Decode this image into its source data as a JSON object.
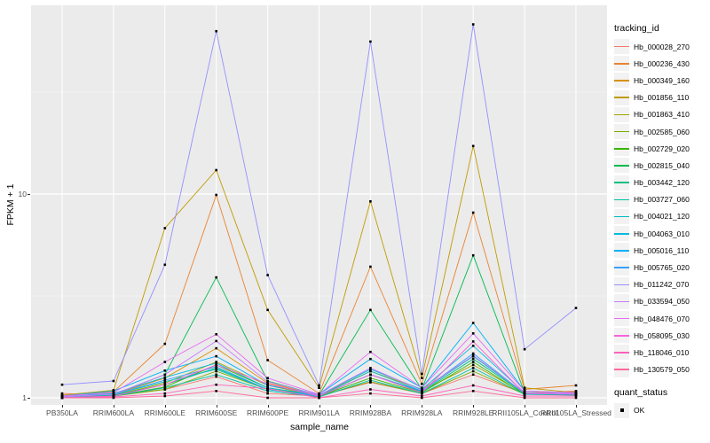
{
  "chart_data": {
    "type": "line",
    "title": "",
    "xlabel": "sample_name",
    "ylabel": "FPKM + 1",
    "y_scale": "log10",
    "ylim": [
      1,
      84
    ],
    "y_ticks": [
      1,
      10
    ],
    "y_minor": [
      3.162,
      31.62
    ],
    "grid": "on",
    "legend_position": "right",
    "legend_title": "tracking_id",
    "legend2_title": "quant_status",
    "legend2_items": [
      {
        "label": "OK"
      }
    ],
    "point_color": "#000000",
    "categories": [
      "PB350LA",
      "RRIM600LA",
      "RRIM600LE",
      "RRIM600SE",
      "RRIM600PE",
      "RRIM901LA",
      "RRIM928BA",
      "RRIM928LA",
      "RRIM928LE",
      "RRII105LA_Control",
      "RRII105LA_Stressed"
    ],
    "series": [
      {
        "name": "Hb_000028_270",
        "color": "#F8766D",
        "values": [
          1.05,
          1.03,
          1.1,
          1.27,
          1.05,
          1.02,
          1.19,
          1.05,
          1.3,
          1.05,
          1.08
        ]
      },
      {
        "name": "Hb_000236_430",
        "color": "#EA8331",
        "values": [
          1.02,
          1.07,
          1.84,
          9.9,
          1.53,
          1.05,
          4.4,
          1.17,
          8.1,
          1.1,
          1.15
        ]
      },
      {
        "name": "Hb_000349_160",
        "color": "#D89000",
        "values": [
          1.01,
          1.04,
          1.25,
          1.75,
          1.18,
          1.03,
          1.35,
          1.1,
          1.6,
          1.06,
          1.07
        ]
      },
      {
        "name": "Hb_001856_110",
        "color": "#C09B00",
        "values": [
          1.03,
          1.09,
          6.8,
          13.1,
          2.7,
          1.12,
          9.2,
          1.25,
          17.2,
          1.12,
          1.06
        ]
      },
      {
        "name": "Hb_001863_410",
        "color": "#A3A500",
        "values": [
          1.01,
          1.03,
          1.18,
          1.5,
          1.15,
          1.02,
          1.3,
          1.08,
          1.45,
          1.05,
          1.05
        ]
      },
      {
        "name": "Hb_002585_060",
        "color": "#7CAE00",
        "values": [
          1.0,
          1.02,
          1.1,
          1.35,
          1.1,
          1.02,
          1.2,
          1.05,
          1.35,
          1.04,
          1.04
        ]
      },
      {
        "name": "Hb_002729_020",
        "color": "#39B600",
        "values": [
          1.0,
          1.02,
          1.13,
          1.45,
          1.12,
          1.02,
          1.25,
          1.06,
          1.5,
          1.04,
          1.04
        ]
      },
      {
        "name": "Hb_002815_040",
        "color": "#00BB4E",
        "values": [
          1.01,
          1.04,
          1.3,
          3.9,
          1.21,
          1.03,
          2.7,
          1.1,
          5.0,
          1.06,
          1.05
        ]
      },
      {
        "name": "Hb_003442_120",
        "color": "#00BF7D",
        "values": [
          1.0,
          1.03,
          1.16,
          1.4,
          1.1,
          1.02,
          1.3,
          1.07,
          1.55,
          1.05,
          1.04
        ]
      },
      {
        "name": "Hb_003727_060",
        "color": "#00C1A3",
        "values": [
          1.0,
          1.02,
          1.12,
          1.3,
          1.08,
          1.01,
          1.22,
          1.05,
          1.4,
          1.04,
          1.03
        ]
      },
      {
        "name": "Hb_004021_120",
        "color": "#00BFC4",
        "values": [
          1.01,
          1.04,
          1.2,
          1.38,
          1.1,
          1.02,
          1.35,
          1.08,
          1.6,
          1.05,
          1.04
        ]
      },
      {
        "name": "Hb_004063_010",
        "color": "#00BAE0",
        "values": [
          1.01,
          1.05,
          1.26,
          1.48,
          1.12,
          1.03,
          1.38,
          1.1,
          1.8,
          1.06,
          1.05
        ]
      },
      {
        "name": "Hb_005016_110",
        "color": "#00B0F6",
        "values": [
          1.02,
          1.08,
          1.36,
          1.6,
          1.15,
          1.04,
          1.55,
          1.12,
          2.33,
          1.08,
          1.06
        ]
      },
      {
        "name": "Hb_005765_020",
        "color": "#35A2FF",
        "values": [
          1.01,
          1.04,
          1.22,
          1.42,
          1.1,
          1.02,
          1.3,
          1.08,
          1.65,
          1.05,
          1.04
        ]
      },
      {
        "name": "Hb_011242_070",
        "color": "#9590FF",
        "values": [
          1.16,
          1.21,
          4.5,
          63,
          4.0,
          1.15,
          56,
          1.31,
          68,
          1.73,
          2.76
        ]
      },
      {
        "name": "Hb_033594_050",
        "color": "#C77CFF",
        "values": [
          1.01,
          1.04,
          1.3,
          1.9,
          1.2,
          1.03,
          1.4,
          1.09,
          1.61,
          1.06,
          1.05
        ]
      },
      {
        "name": "Hb_048476_070",
        "color": "#E76BF3",
        "values": [
          1.02,
          1.06,
          1.5,
          2.05,
          1.25,
          1.04,
          1.68,
          1.12,
          2.07,
          1.08,
          1.06
        ]
      },
      {
        "name": "Hb_058095_030",
        "color": "#FA62DB",
        "values": [
          1.0,
          1.02,
          1.16,
          1.45,
          1.17,
          1.02,
          1.3,
          1.06,
          1.89,
          1.05,
          1.04
        ]
      },
      {
        "name": "Hb_118046_010",
        "color": "#FF62BC",
        "values": [
          1.0,
          1.01,
          1.05,
          1.16,
          1.11,
          1.0,
          1.1,
          1.02,
          1.15,
          1.02,
          1.02
        ]
      },
      {
        "name": "Hb_130579_050",
        "color": "#FF6A98",
        "values": [
          1.0,
          1.0,
          1.02,
          1.08,
          1.0,
          1.0,
          1.05,
          1.0,
          1.08,
          1.0,
          1.0
        ]
      }
    ]
  }
}
